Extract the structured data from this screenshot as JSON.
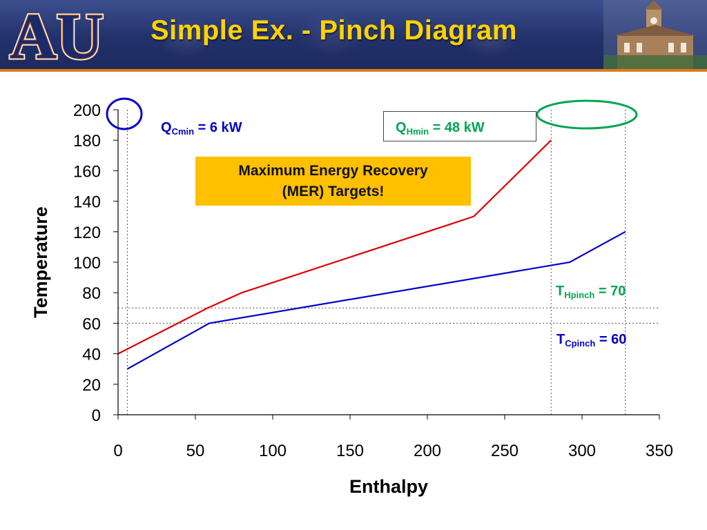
{
  "slide": {
    "title": "Simple Ex. - Pinch Diagram",
    "logo_text": "AU"
  },
  "colors": {
    "title": "#ffd200",
    "hot": "#e00000",
    "cold": "#0000cc",
    "qh_text": "#00a550",
    "green_ellipse": "#00a550",
    "blue_ellipse": "#0000cc",
    "mer_box": "#ffc000"
  },
  "annotations": {
    "qc": {
      "main": "Q",
      "sub": "Cmin",
      "rest": " = 6 kW"
    },
    "qh": {
      "main": "Q",
      "sub": "Hmin",
      "rest": " = 48 kW"
    },
    "mer": {
      "line1": "Maximum Energy Recovery",
      "line2": "(MER) Targets!"
    },
    "th": {
      "main": "T",
      "sub": "Hpinch",
      "rest": " = 70"
    },
    "tc": {
      "main": "T",
      "sub": "Cpinch",
      "rest": " = 60"
    }
  },
  "chart_data": {
    "type": "line",
    "xlabel": "Enthalpy",
    "ylabel": "Temperature",
    "xlim": [
      0,
      350
    ],
    "ylim": [
      0,
      200
    ],
    "xticks": [
      0,
      50,
      100,
      150,
      200,
      250,
      300,
      350
    ],
    "yticks": [
      0,
      20,
      40,
      60,
      80,
      100,
      120,
      140,
      160,
      180,
      200
    ],
    "grid": false,
    "series": [
      {
        "key": "hot",
        "color": "#e00000",
        "points": [
          [
            0,
            40
          ],
          [
            58,
            70
          ],
          [
            80,
            80
          ],
          [
            230,
            130
          ],
          [
            280,
            180
          ]
        ]
      },
      {
        "key": "cold",
        "color": "#0000cc",
        "points": [
          [
            6,
            30
          ],
          [
            59,
            60
          ],
          [
            292,
            100
          ],
          [
            328,
            120
          ]
        ]
      }
    ],
    "reference_lines": {
      "horizontal": [
        60,
        70
      ],
      "vertical": [
        6,
        280,
        328
      ]
    }
  }
}
